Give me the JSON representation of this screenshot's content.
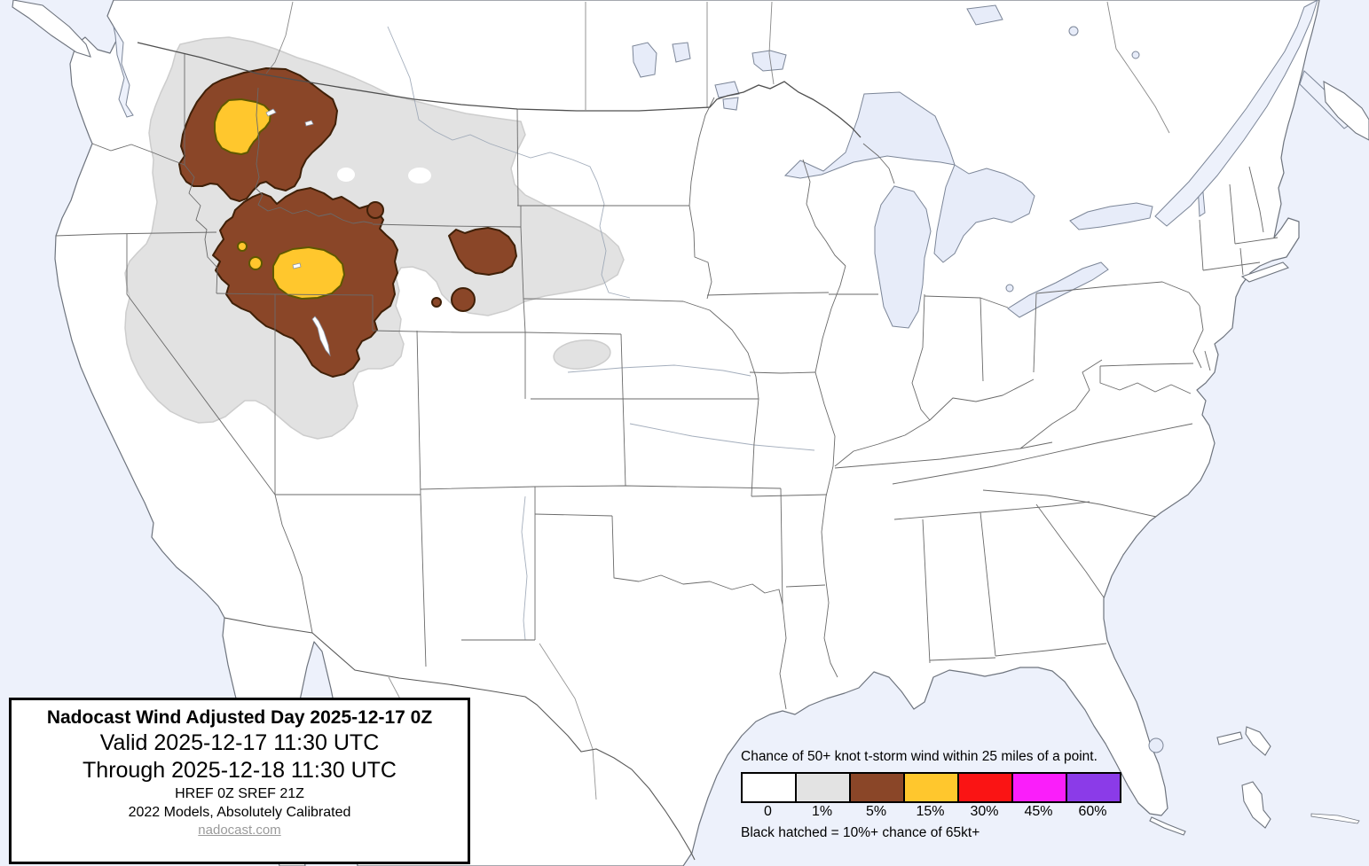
{
  "title_box": {
    "title": "Nadocast Wind Adjusted Day 2025-12-17 0Z",
    "valid_line": "Valid 2025-12-17 11:30 UTC",
    "through_line": "Through 2025-12-18 11:30 UTC",
    "models_line": "HREF 0Z SREF 21Z",
    "calibration_line": "2022 Models, Absolutely Calibrated",
    "website": "nadocast.com"
  },
  "legend": {
    "title": "Chance of 50+ knot t-storm wind within 25 miles of a point.",
    "note": "Black hatched = 10%+ chance of 65kt+",
    "bins": [
      {
        "label": "0",
        "color": "#ffffff"
      },
      {
        "label": "1%",
        "color": "#e3e3e3"
      },
      {
        "label": "5%",
        "color": "#8a4628"
      },
      {
        "label": "15%",
        "color": "#ffc72d"
      },
      {
        "label": "30%",
        "color": "#fa1414"
      },
      {
        "label": "45%",
        "color": "#fa1efa"
      },
      {
        "label": "60%",
        "color": "#8b3be8"
      }
    ]
  },
  "map": {
    "colors": {
      "ocean": "#edf1fb",
      "land": "#ffffff",
      "lake": "#e7ecf9",
      "border": "#6a6a6a",
      "contour_1pct": "#e2e2e2",
      "contour_5pct": "#8a4628",
      "contour_15pct": "#ffc72d"
    },
    "contours": {
      "type": "probability-contour-map",
      "region": "Continental United States",
      "levels_shown": [
        {
          "level": "1%",
          "color": "#e2e2e2",
          "blob_count": 2
        },
        {
          "level": "5%",
          "color": "#8a4628",
          "blob_count": 6
        },
        {
          "level": "15%",
          "color": "#ffc72d",
          "blob_count": 4
        }
      ],
      "coverage_note": "Contours centered over the northern Rockies / Great Basin (Pacific Northwest, Idaho, Montana, Wyoming, Utah); 15% cores over the Idaho panhandle and southern Idaho / northern Utah"
    }
  }
}
